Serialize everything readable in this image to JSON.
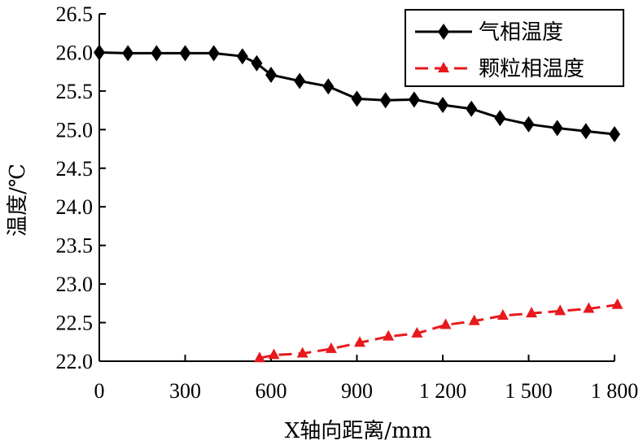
{
  "chart_data": {
    "type": "line",
    "xlabel": "X轴向距离/mm",
    "ylabel": "温度/℃",
    "xlim": [
      0,
      1800
    ],
    "ylim": [
      22.0,
      26.5
    ],
    "x_ticks": [
      "0",
      "300",
      "600",
      "900",
      "1 200",
      "1 500",
      "1 800"
    ],
    "x_tick_values": [
      0,
      300,
      600,
      900,
      1200,
      1500,
      1800
    ],
    "y_ticks": [
      "22.0",
      "22.5",
      "23.0",
      "23.5",
      "24.0",
      "24.5",
      "25.0",
      "25.5",
      "26.0",
      "26.5"
    ],
    "y_tick_values": [
      22.0,
      22.5,
      23.0,
      23.5,
      24.0,
      24.5,
      25.0,
      25.5,
      26.0,
      26.5
    ],
    "grid": false,
    "legend_position": "top-right",
    "series": [
      {
        "name": "气相温度",
        "color": "#000000",
        "marker": "diamond",
        "dash": "solid",
        "x": [
          0,
          100,
          200,
          300,
          400,
          500,
          550,
          600,
          700,
          800,
          900,
          1000,
          1100,
          1200,
          1300,
          1400,
          1500,
          1600,
          1700,
          1800
        ],
        "y": [
          26.0,
          25.99,
          25.99,
          25.99,
          25.99,
          25.95,
          25.86,
          25.71,
          25.63,
          25.56,
          25.4,
          25.38,
          25.39,
          25.32,
          25.27,
          25.15,
          25.07,
          25.02,
          24.98,
          24.94
        ]
      },
      {
        "name": "颗粒相温度",
        "color": "#e8191c",
        "marker": "triangle",
        "dash": "dashed",
        "x": [
          560,
          610,
          710,
          810,
          910,
          1010,
          1110,
          1210,
          1310,
          1410,
          1510,
          1610,
          1710,
          1810
        ],
        "y": [
          22.04,
          22.08,
          22.1,
          22.16,
          22.24,
          22.32,
          22.36,
          22.47,
          22.52,
          22.59,
          22.62,
          22.65,
          22.68,
          22.73
        ]
      }
    ]
  }
}
